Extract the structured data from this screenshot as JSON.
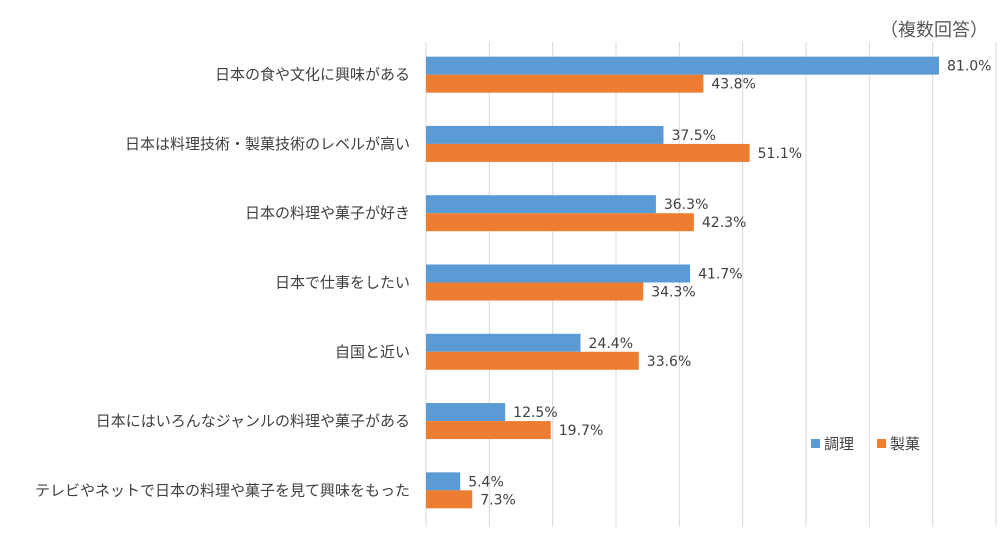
{
  "note": "（複数回答）",
  "chart_data": {
    "type": "bar",
    "orientation": "horizontal",
    "categories": [
      "日本の食や文化に興味がある",
      "日本は料理技術・製菓技術のレベルが高い",
      "日本の料理や菓子が好き",
      "日本で仕事をしたい",
      "自国と近い",
      "日本にはいろんなジャンルの料理や菓子がある",
      "テレビやネットで日本の料理や菓子を見て興味をもった"
    ],
    "series": [
      {
        "name": "調理",
        "color": "#5b9bd5",
        "values": [
          81.0,
          37.5,
          36.3,
          41.7,
          24.4,
          12.5,
          5.4
        ],
        "labels": [
          "81.0%",
          "37.5%",
          "36.3%",
          "41.7%",
          "24.4%",
          "12.5%",
          "5.4%"
        ]
      },
      {
        "name": "製菓",
        "color": "#ed7d31",
        "values": [
          43.8,
          51.1,
          42.3,
          34.3,
          33.6,
          19.7,
          7.3
        ],
        "labels": [
          "43.8%",
          "51.1%",
          "42.3%",
          "34.3%",
          "33.6%",
          "19.7%",
          "7.3%"
        ]
      }
    ],
    "xlim": [
      0,
      90
    ],
    "grid": true,
    "legend_position": "bottom-right"
  }
}
